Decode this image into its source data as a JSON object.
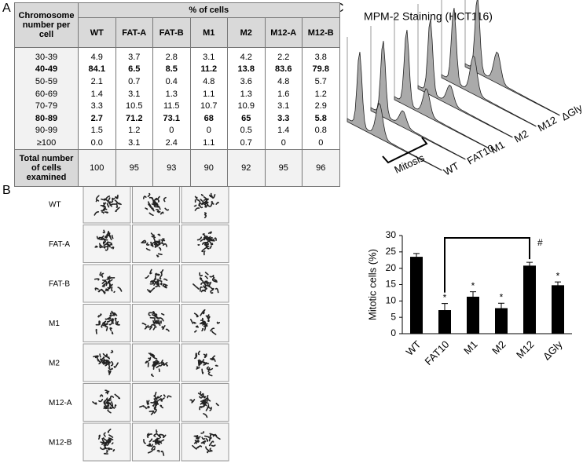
{
  "panel_labels": [
    "A",
    "B",
    "C"
  ],
  "table": {
    "header": {
      "row_label": "Chromosome number per cell",
      "group": "% of cells",
      "columns": [
        "WT",
        "FAT-A",
        "FAT-B",
        "M1",
        "M2",
        "M12-A",
        "M12-B"
      ]
    },
    "rows": [
      {
        "label": "30-39",
        "cells": [
          "4.9",
          "3.7",
          "2.8",
          "3.1",
          "4.2",
          "2.2",
          "3.8"
        ]
      },
      {
        "label": "40-49",
        "bold": true,
        "cells": [
          "84.1",
          "6.5",
          "8.5",
          "11.2",
          "13.8",
          "83.6",
          "79.8"
        ]
      },
      {
        "label": "50-59",
        "cells": [
          "2.1",
          "0.7",
          "0.4",
          "4.8",
          "3.6",
          "4.8",
          "5.7"
        ]
      },
      {
        "label": "60-69",
        "cells": [
          "1.4",
          "3.1",
          "1.3",
          "1.1",
          "1.3",
          "1.6",
          "1.2"
        ]
      },
      {
        "label": "70-79",
        "cells": [
          "3.3",
          "10.5",
          "11.5",
          "10.7",
          "10.9",
          "3.1",
          "2.9"
        ]
      },
      {
        "label": "80-89",
        "bold": true,
        "cells": [
          "2.7",
          "71.2",
          "73.1",
          "68",
          "65",
          "3.3",
          "5.8"
        ]
      },
      {
        "label": "90-99",
        "cells": [
          "1.5",
          "1.2",
          "0",
          "0",
          "0.5",
          "1.4",
          "0.8"
        ]
      },
      {
        "label": "≥100",
        "cells": [
          "0.0",
          "3.1",
          "2.4",
          "1.1",
          "0.7",
          "0",
          "0"
        ]
      }
    ],
    "total": {
      "label": "Total number of cells examined",
      "cells": [
        "100",
        "95",
        "93",
        "90",
        "92",
        "95",
        "96"
      ]
    }
  },
  "panel_b": {
    "rows": [
      "WT",
      "FAT-A",
      "FAT-B",
      "M1",
      "M2",
      "M12-A",
      "M12-B"
    ]
  },
  "panel_c": {
    "title": "MPM-2 Staining (HCT116)",
    "gate_label": "Mitosis",
    "histogram_labels": [
      "WT",
      "FAT10",
      "M1",
      "M2",
      "M12",
      "ΔGly"
    ]
  },
  "chart_data": {
    "type": "bar",
    "y_label": "Mitotic cells (%)",
    "categories": [
      "WT",
      "FAT10",
      "M1",
      "M2",
      "M12",
      "ΔGly"
    ],
    "series": [
      {
        "color": "#000000",
        "values": [
          23.5,
          7.2,
          11.3,
          7.8,
          20.8,
          14.8
        ],
        "errors": [
          1.0,
          2.0,
          1.5,
          1.5,
          1.0,
          1.0
        ]
      }
    ],
    "ylim": [
      0,
      30
    ],
    "yticks": [
      0,
      5,
      10,
      15,
      20,
      25,
      30
    ],
    "annotations": [
      {
        "text": "*",
        "category": "FAT10"
      },
      {
        "text": "*",
        "category": "M1"
      },
      {
        "text": "*",
        "category": "M2"
      },
      {
        "text": "*",
        "category": "ΔGly"
      }
    ],
    "bracket": {
      "text": "#",
      "from": "FAT10",
      "to": "M12"
    }
  }
}
